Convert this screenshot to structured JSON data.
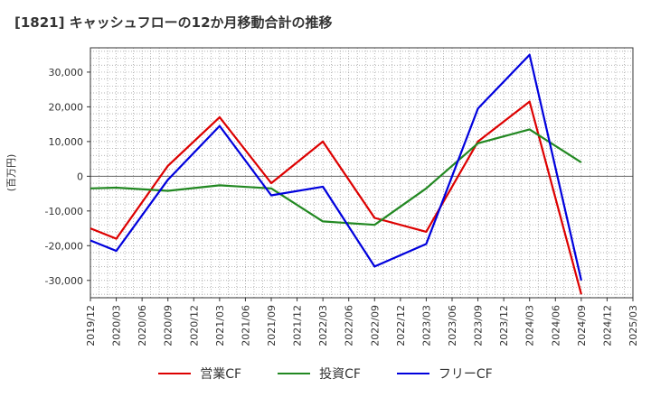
{
  "chart_data": {
    "type": "line",
    "title": "[1821]  キャッシュフローの12か月移動合計の推移",
    "ylabel": "(百万円)",
    "xlabel": "",
    "ylim": [
      -35000,
      37000
    ],
    "yticks": [
      -30000,
      -20000,
      -10000,
      0,
      10000,
      20000,
      30000
    ],
    "ytick_labels": [
      "-30,000",
      "-20,000",
      "-10,000",
      "0",
      "10,000",
      "20,000",
      "30,000"
    ],
    "x": [
      "2019/12",
      "2020/03",
      "2020/06",
      "2020/09",
      "2020/12",
      "2021/03",
      "2021/06",
      "2021/09",
      "2021/12",
      "2022/03",
      "2022/06",
      "2022/09",
      "2022/12",
      "2023/03",
      "2023/06",
      "2023/09",
      "2023/12",
      "2024/03",
      "2024/06",
      "2024/09",
      "2024/12",
      "2025/03"
    ],
    "series": [
      {
        "name": "営業CF",
        "color": "#dd0000",
        "values": [
          -15000,
          -18000,
          null,
          3000,
          null,
          17000,
          null,
          -2000,
          null,
          10000,
          null,
          -12000,
          null,
          -16000,
          null,
          10000,
          null,
          21500,
          null,
          -34000,
          null,
          null
        ]
      },
      {
        "name": "投資CF",
        "color": "#228822",
        "values": [
          -3500,
          -3300,
          null,
          -4200,
          null,
          -2600,
          null,
          -3500,
          null,
          -13000,
          null,
          -14000,
          null,
          -3500,
          null,
          9500,
          null,
          13500,
          null,
          4000,
          null,
          null
        ]
      },
      {
        "name": "フリーCF",
        "color": "#0000dd",
        "values": [
          -18500,
          -21500,
          null,
          -1000,
          null,
          14500,
          null,
          -5500,
          null,
          -3000,
          null,
          -26000,
          null,
          -19500,
          null,
          19500,
          null,
          35000,
          null,
          -30000,
          null,
          null
        ]
      }
    ],
    "grid": true,
    "legend_position": "bottom"
  }
}
